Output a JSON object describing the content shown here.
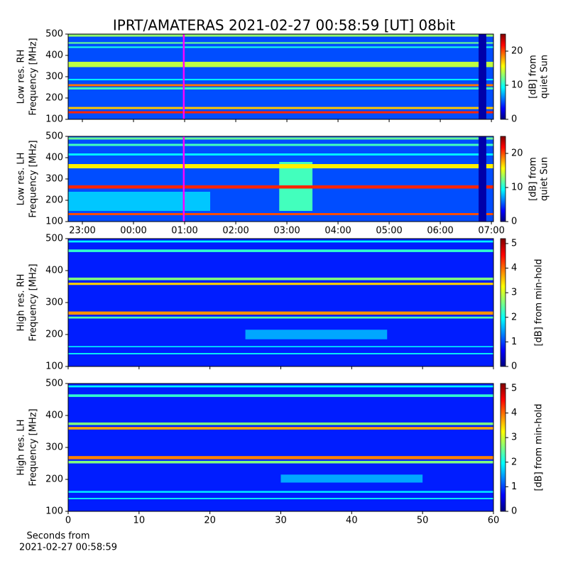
{
  "title": "IPRT/AMATERAS 2021-02-27 00:58:59 [UT]   08bit",
  "chart_data": [
    {
      "type": "heatmap",
      "ylabel": [
        "Low res. RH",
        "Frequency [MHz]"
      ],
      "ylim": [
        100,
        500
      ],
      "yticks": [
        100,
        200,
        300,
        400,
        500
      ],
      "xlim": [
        -1.278,
        7.04
      ],
      "marker": 0.983,
      "marker_color": "#ff00ff",
      "clim": [
        0,
        25
      ],
      "cticks": [
        0,
        10,
        20
      ],
      "clabel": [
        "[dB] from",
        "quiet Sun"
      ],
      "background": 5,
      "bands": [
        {
          "range": [
            128,
            138
          ],
          "level": 21
        },
        {
          "range": [
            148,
            158
          ],
          "level": 17
        },
        {
          "range": [
            240,
            250
          ],
          "level": 11
        },
        {
          "range": [
            255,
            265
          ],
          "level": 19
        },
        {
          "range": [
            283,
            290
          ],
          "level": 9
        },
        {
          "range": [
            345,
            370
          ],
          "level": 14
        },
        {
          "range": [
            435,
            442
          ],
          "level": 10
        },
        {
          "range": [
            455,
            462
          ],
          "level": 12
        },
        {
          "range": [
            488,
            498
          ],
          "level": 13
        },
        {
          "range": [
            100,
            500
          ],
          "level": 1,
          "x": [
            6.75,
            6.9
          ]
        }
      ]
    },
    {
      "type": "heatmap",
      "ylabel": [
        "Low res. LH",
        "Frequency [MHz]"
      ],
      "ylim": [
        100,
        500
      ],
      "yticks": [
        100,
        200,
        300,
        400,
        500
      ],
      "xlim": [
        -1.278,
        7.04
      ],
      "marker": 0.983,
      "marker_color": "#ff00ff",
      "xticks": [
        {
          "value": -1,
          "label": "23:00"
        },
        {
          "value": 0,
          "label": "00:00"
        },
        {
          "value": 1,
          "label": "01:00"
        },
        {
          "value": 2,
          "label": "02:00"
        },
        {
          "value": 3,
          "label": "03:00"
        },
        {
          "value": 4,
          "label": "04:00"
        },
        {
          "value": 5,
          "label": "05:00"
        },
        {
          "value": 6,
          "label": "06:00"
        },
        {
          "value": 7,
          "label": "07:00"
        }
      ],
      "clim": [
        0,
        25
      ],
      "cticks": [
        0,
        10,
        20
      ],
      "clabel": [
        "[dB] from",
        "quiet Sun"
      ],
      "background": 5,
      "bands": [
        {
          "range": [
            130,
            140
          ],
          "level": 20
        },
        {
          "range": [
            150,
            240
          ],
          "level": 8,
          "x": [
            -1.278,
            1.5
          ]
        },
        {
          "range": [
            150,
            380
          ],
          "level": 11,
          "x": [
            2.85,
            3.5
          ]
        },
        {
          "range": [
            255,
            270
          ],
          "level": 21
        },
        {
          "range": [
            350,
            370
          ],
          "level": 16
        },
        {
          "range": [
            410,
            420
          ],
          "level": 9
        },
        {
          "range": [
            455,
            465
          ],
          "level": 11
        },
        {
          "range": [
            485,
            495
          ],
          "level": 12
        },
        {
          "range": [
            100,
            500
          ],
          "level": 1,
          "x": [
            6.75,
            6.9
          ]
        }
      ]
    },
    {
      "type": "heatmap",
      "ylabel": [
        "High res. RH",
        "Frequency [MHz]"
      ],
      "ylim": [
        100,
        500
      ],
      "yticks": [
        100,
        200,
        300,
        400,
        500
      ],
      "xlim": [
        0,
        60
      ],
      "clim": [
        0,
        5.2
      ],
      "cticks": [
        0,
        1,
        2,
        3,
        4,
        5
      ],
      "clabel": [
        "[dB] from min-hold"
      ],
      "background": 0.8,
      "bands": [
        {
          "range": [
            138,
            142
          ],
          "level": 2
        },
        {
          "range": [
            160,
            164
          ],
          "level": 1.8
        },
        {
          "range": [
            185,
            215
          ],
          "level": 1.5,
          "x": [
            25,
            45
          ]
        },
        {
          "range": [
            250,
            256
          ],
          "level": 2.4
        },
        {
          "range": [
            262,
            272
          ],
          "level": 3.8
        },
        {
          "range": [
            355,
            362
          ],
          "level": 3.5
        },
        {
          "range": [
            370,
            378
          ],
          "level": 2.6
        },
        {
          "range": [
            458,
            466
          ],
          "level": 2.2
        },
        {
          "range": [
            488,
            494
          ],
          "level": 1.9
        }
      ]
    },
    {
      "type": "heatmap",
      "ylabel": [
        "High res. LH",
        "Frequency [MHz]"
      ],
      "ylim": [
        100,
        500
      ],
      "yticks": [
        100,
        200,
        300,
        400,
        500
      ],
      "xlim": [
        0,
        60
      ],
      "xticks": [
        0,
        10,
        20,
        30,
        40,
        50,
        60
      ],
      "xlabel": [
        "Seconds from",
        "2021-02-27 00:58:59"
      ],
      "clim": [
        0,
        5.2
      ],
      "cticks": [
        0,
        1,
        2,
        3,
        4,
        5
      ],
      "clabel": [
        "[dB] from min-hold"
      ],
      "background": 0.8,
      "bands": [
        {
          "range": [
            138,
            142
          ],
          "level": 2
        },
        {
          "range": [
            158,
            164
          ],
          "level": 1.8
        },
        {
          "range": [
            190,
            215
          ],
          "level": 1.5,
          "x": [
            30,
            50
          ]
        },
        {
          "range": [
            250,
            258
          ],
          "level": 2.6
        },
        {
          "range": [
            263,
            273
          ],
          "level": 3.9
        },
        {
          "range": [
            356,
            364
          ],
          "level": 3.7
        },
        {
          "range": [
            370,
            378
          ],
          "level": 2.6
        },
        {
          "range": [
            458,
            466
          ],
          "level": 2.2
        },
        {
          "range": [
            488,
            494
          ],
          "level": 1.9
        }
      ]
    }
  ]
}
